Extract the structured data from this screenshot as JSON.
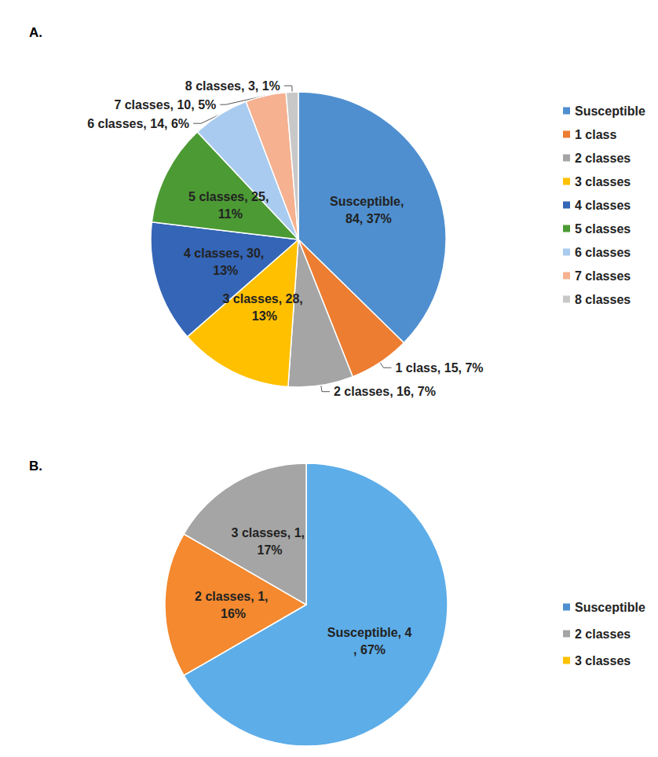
{
  "chart_data": [
    {
      "type": "pie",
      "title": "A.",
      "categories": [
        "Susceptible",
        "1 class",
        "2 classes",
        "3 classes",
        "4 classes",
        "5 classes",
        "6 classes",
        "7 classes",
        "8 classes"
      ],
      "values": [
        84,
        15,
        16,
        28,
        30,
        25,
        14,
        10,
        3
      ],
      "value_labels": [
        "Susceptible, 84, 37%",
        "1 class, 15, 7%",
        "2 classes, 16, 7%",
        "3 classes, 28, 13%",
        "4 classes, 30, 13%",
        "5 classes, 25, 11%",
        "6 classes, 14, 6%",
        "7 classes, 10, 5%",
        "8 classes, 3, 1%"
      ],
      "colors": [
        "#4f8fcf",
        "#ed7d31",
        "#a5a5a5",
        "#ffc000",
        "#3465b6",
        "#4c9a34",
        "#a9cbef",
        "#f5b190",
        "#c8c8c8"
      ],
      "data_labels": true,
      "legend": "right"
    },
    {
      "type": "pie",
      "title": "B.",
      "categories": [
        "Susceptible",
        "2 classes",
        "3 classes"
      ],
      "values": [
        4,
        1,
        1
      ],
      "value_labels": [
        "Susceptible, 4, 67%",
        "2 classes, 1, 16%",
        "3 classes, 1, 17%"
      ],
      "colors": [
        "#5dade8",
        "#f4892f",
        "#a5a5a5"
      ],
      "data_labels": true,
      "legend": "right"
    }
  ]
}
